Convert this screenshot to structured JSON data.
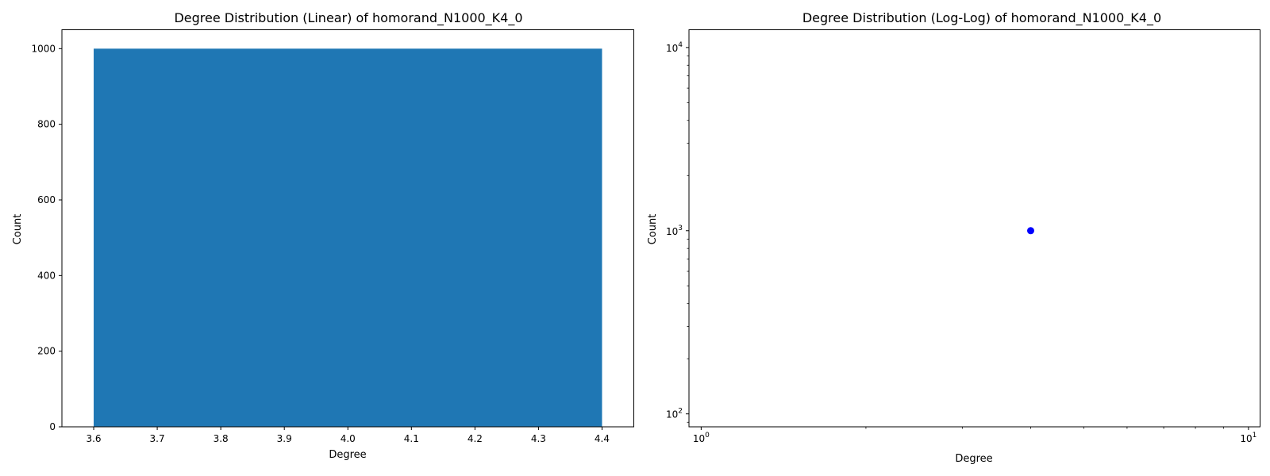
{
  "chart_data": [
    {
      "type": "bar",
      "title": "Degree Distribution (Linear) of homorand_N1000_K4_0",
      "xlabel": "Degree",
      "ylabel": "Count",
      "xlim": [
        3.55,
        4.45
      ],
      "ylim": [
        0,
        1050
      ],
      "xticks": [
        3.6,
        3.7,
        3.8,
        3.9,
        4.0,
        4.1,
        4.2,
        4.3,
        4.4
      ],
      "yticks": [
        0,
        200,
        400,
        600,
        800,
        1000
      ],
      "bars": [
        {
          "x": 4,
          "width": 0.8,
          "value": 1000
        }
      ],
      "color": "#1f77b4",
      "grid": false
    },
    {
      "type": "scatter",
      "title": "Degree Distribution (Log-Log) of homorand_N1000_K4_0",
      "xlabel": "Degree",
      "ylabel": "Count",
      "xscale": "log",
      "yscale": "log",
      "xlim": [
        0.95,
        10.5
      ],
      "ylim": [
        85,
        12500
      ],
      "xticks": [
        1,
        10
      ],
      "xtick_labels": [
        {
          "base": "10",
          "exp": "0"
        },
        {
          "base": "10",
          "exp": "1"
        }
      ],
      "yticks": [
        100,
        1000,
        10000
      ],
      "ytick_labels": [
        {
          "base": "10",
          "exp": "2"
        },
        {
          "base": "10",
          "exp": "3"
        },
        {
          "base": "10",
          "exp": "4"
        }
      ],
      "points": [
        {
          "x": 4,
          "y": 1000
        }
      ],
      "color": "#0000ff",
      "grid": false
    }
  ]
}
